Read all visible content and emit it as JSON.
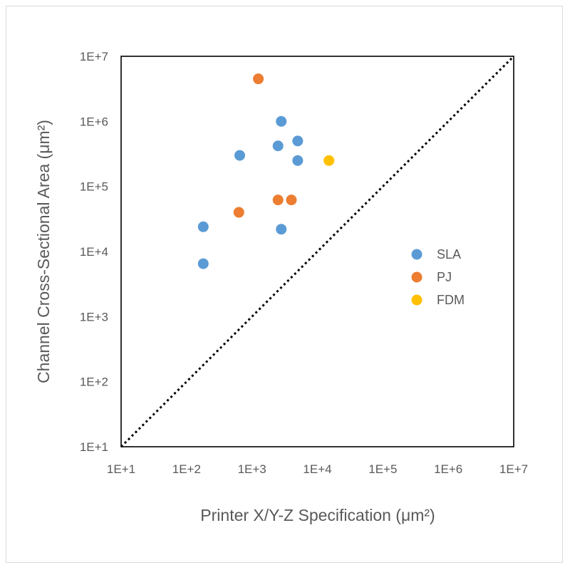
{
  "chart_data": {
    "type": "scatter",
    "title": "",
    "xlabel": "Printer X/Y-Z Specification (μm²)",
    "ylabel": "Channel Cross-Sectional Area (μm²)",
    "x_scale": "log",
    "y_scale": "log",
    "xlim": [
      10,
      10000000
    ],
    "ylim": [
      10,
      10000000
    ],
    "x_tick_labels": [
      "1E+1",
      "1E+2",
      "1E+3",
      "1E+4",
      "1E+5",
      "1E+6",
      "1E+7"
    ],
    "y_tick_labels": [
      "1E+1",
      "1E+2",
      "1E+3",
      "1E+4",
      "1E+5",
      "1E+6",
      "1E+7"
    ],
    "grid": false,
    "legend_position": "right",
    "reference_line": {
      "style": "dotted",
      "color": "#000000",
      "from": [
        10,
        10
      ],
      "to": [
        10000000,
        10000000
      ]
    },
    "series": [
      {
        "name": "SLA",
        "color": "#5B9BD5",
        "points": [
          [
            2800,
            1000000
          ],
          [
            5000,
            500000
          ],
          [
            2500,
            420000
          ],
          [
            650,
            300000
          ],
          [
            5000,
            250000
          ],
          [
            180,
            24000
          ],
          [
            2800,
            22000
          ],
          [
            180,
            6500
          ]
        ]
      },
      {
        "name": "PJ",
        "color": "#ED7D31",
        "points": [
          [
            1250,
            4500000
          ],
          [
            2500,
            62000
          ],
          [
            4000,
            62000
          ],
          [
            630,
            40000
          ]
        ]
      },
      {
        "name": "FDM",
        "color": "#FFC000",
        "points": [
          [
            15000,
            250000
          ]
        ]
      }
    ]
  }
}
